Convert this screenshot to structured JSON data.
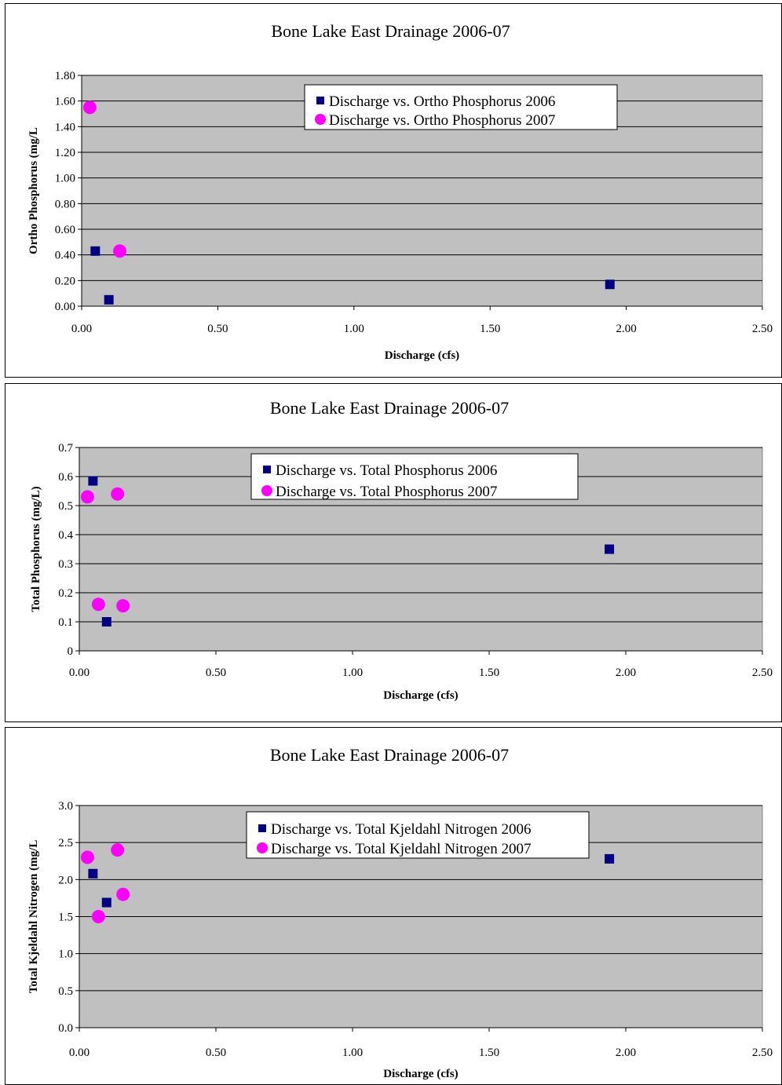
{
  "chart_data": [
    {
      "type": "scatter",
      "title": "Bone Lake East Drainage 2006-07",
      "xlabel": "Discharge (cfs)",
      "ylabel": "Ortho Phosphorus (mg/L",
      "xlim": [
        0,
        2.5
      ],
      "ylim": [
        0,
        1.8
      ],
      "x_ticks": [
        "0.00",
        "0.50",
        "1.00",
        "1.50",
        "2.00",
        "2.50"
      ],
      "y_ticks": [
        "0.00",
        "0.20",
        "0.40",
        "0.60",
        "0.80",
        "1.00",
        "1.20",
        "1.40",
        "1.60",
        "1.80"
      ],
      "grid": true,
      "legend_position": "top-center",
      "series": [
        {
          "name": "Discharge vs. Ortho Phosphorus 2006",
          "marker": "square",
          "color": "#000080",
          "x": [
            0.05,
            0.1,
            1.94
          ],
          "y": [
            0.43,
            0.05,
            0.17
          ]
        },
        {
          "name": "Discharge vs. Ortho Phosphorus 2007",
          "marker": "circle",
          "color": "#FF00FF",
          "x": [
            0.03,
            0.14
          ],
          "y": [
            1.55,
            0.43
          ]
        }
      ]
    },
    {
      "type": "scatter",
      "title": "Bone Lake East Drainage 2006-07",
      "xlabel": "Discharge (cfs)",
      "ylabel": "Total Phosphorus (mg/L)",
      "xlim": [
        0,
        2.5
      ],
      "ylim": [
        0,
        0.7
      ],
      "x_ticks": [
        "0.00",
        "0.50",
        "1.00",
        "1.50",
        "2.00",
        "2.50"
      ],
      "y_ticks": [
        "0",
        "0.1",
        "0.2",
        "0.3",
        "0.4",
        "0.5",
        "0.6",
        "0.7"
      ],
      "grid": true,
      "legend_position": "top-center",
      "series": [
        {
          "name": "Discharge vs. Total Phosphorus 2006",
          "marker": "square",
          "color": "#000080",
          "x": [
            0.05,
            0.1,
            1.94
          ],
          "y": [
            0.585,
            0.1,
            0.35
          ]
        },
        {
          "name": "Discharge vs. Total Phosphorus 2007",
          "marker": "circle",
          "color": "#FF00FF",
          "x": [
            0.03,
            0.14,
            0.07,
            0.16
          ],
          "y": [
            0.53,
            0.54,
            0.16,
            0.155
          ]
        }
      ]
    },
    {
      "type": "scatter",
      "title": "Bone Lake East Drainage 2006-07",
      "xlabel": "Discharge (cfs)",
      "ylabel": "Total Kjeldahl Nitrogen (mg/L",
      "xlim": [
        0,
        2.5
      ],
      "ylim": [
        0,
        3.0
      ],
      "x_ticks": [
        "0.00",
        "0.50",
        "1.00",
        "1.50",
        "2.00",
        "2.50"
      ],
      "y_ticks": [
        "0.0",
        "0.5",
        "1.0",
        "1.5",
        "2.0",
        "2.5",
        "3.0"
      ],
      "grid": true,
      "legend_position": "top-center",
      "series": [
        {
          "name": "Discharge vs. Total Kjeldahl Nitrogen 2006",
          "marker": "square",
          "color": "#000080",
          "x": [
            0.05,
            0.1,
            1.94
          ],
          "y": [
            2.08,
            1.69,
            2.28
          ]
        },
        {
          "name": "Discharge vs. Total Kjeldahl Nitrogen 2007",
          "marker": "circle",
          "color": "#FF00FF",
          "x": [
            0.03,
            0.14,
            0.07,
            0.16
          ],
          "y": [
            2.3,
            2.4,
            1.5,
            1.8
          ]
        }
      ]
    }
  ],
  "colors": {
    "plot_area": "#C0C0C0",
    "grid": "#000000"
  }
}
